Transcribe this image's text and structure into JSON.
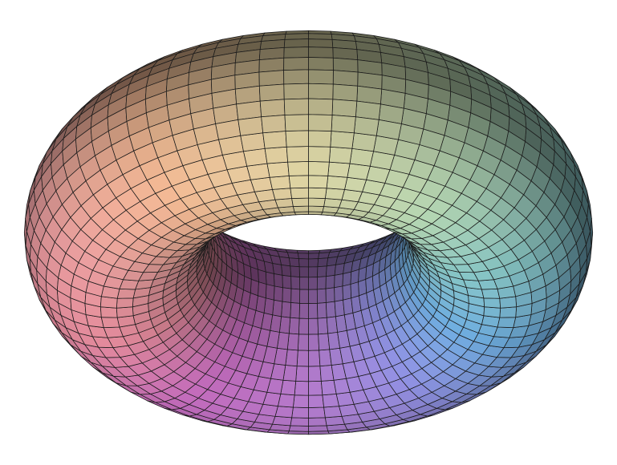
{
  "figure": {
    "background": "#ffffff",
    "wire_color": "#1a1a1a",
    "palette": [
      "#e0889a",
      "#e09898",
      "#e6b08c",
      "#d8d0a0",
      "#b6d8b4",
      "#86c4c4",
      "#6aa6d6",
      "#8a8ad8",
      "#b078c8",
      "#c46cbe"
    ]
  }
}
